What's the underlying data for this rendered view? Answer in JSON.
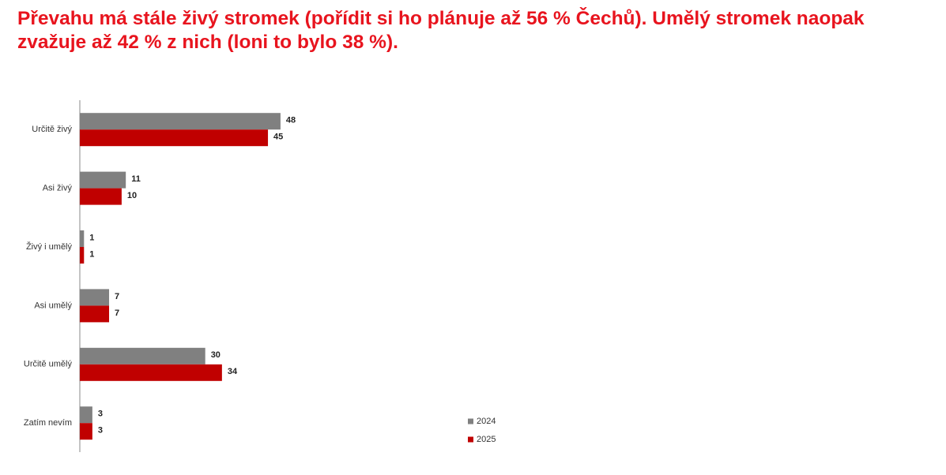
{
  "chart_data": {
    "type": "hbar",
    "title": [
      "Převahu má stále živý stromek (pořídit si ho plánuje až 56 % Čechů). Umělý stromek naopak",
      "zvažuje až 42 % z nich (loni to bylo 38 %)."
    ],
    "categories": [
      "Určitě živý",
      "Asi živý",
      "Živý i umělý",
      "Asi umělý",
      "Určitě umělý",
      "Zatím nevím"
    ],
    "series": [
      {
        "name": "2024",
        "color": "#808080",
        "values": [
          48,
          11,
          1,
          7,
          30,
          3
        ]
      },
      {
        "name": "2025",
        "color": "#c00000",
        "values": [
          45,
          10,
          1,
          7,
          34,
          3
        ]
      }
    ],
    "legend": "right"
  }
}
